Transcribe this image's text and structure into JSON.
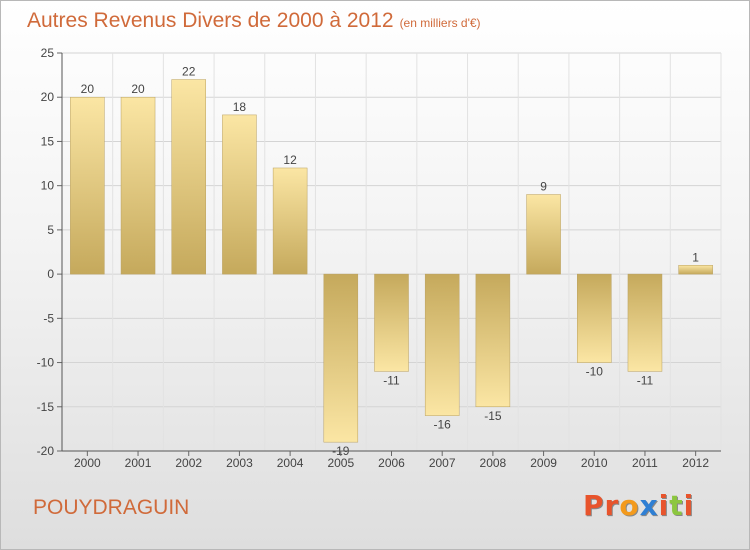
{
  "title": "Autres Revenus Divers de 2000 à 2012",
  "subtitle": "(en milliers d'€)",
  "town": "POUYDRAGUIN",
  "logo": {
    "text": "Proxiti",
    "colors": [
      "#e8542c",
      "#e8542c",
      "#f39a1c",
      "#2e7fd4",
      "#e8542c",
      "#8cc63f",
      "#e8542c"
    ]
  },
  "colors": {
    "title": "#d06a3a",
    "bar_light": "#fbe6a4",
    "bar_dark": "#c5a95c"
  },
  "chart_data": {
    "type": "bar",
    "categories": [
      "2000",
      "2001",
      "2002",
      "2003",
      "2004",
      "2005",
      "2006",
      "2007",
      "2008",
      "2009",
      "2010",
      "2011",
      "2012"
    ],
    "values": [
      20,
      20,
      22,
      18,
      12,
      -19,
      -11,
      -16,
      -15,
      9,
      -10,
      -11,
      1
    ],
    "labels": [
      "20",
      "20",
      "22",
      "18",
      "12",
      "-19",
      "-11",
      "-16",
      "-15",
      "9",
      "-10",
      "-11",
      "1"
    ],
    "yticks": [
      "25",
      "20",
      "15",
      "10",
      "5",
      "0",
      "-5",
      "-10",
      "-15",
      "-20"
    ],
    "ylim": [
      -20,
      25
    ],
    "grid": true,
    "xlabel": "",
    "ylabel": ""
  }
}
